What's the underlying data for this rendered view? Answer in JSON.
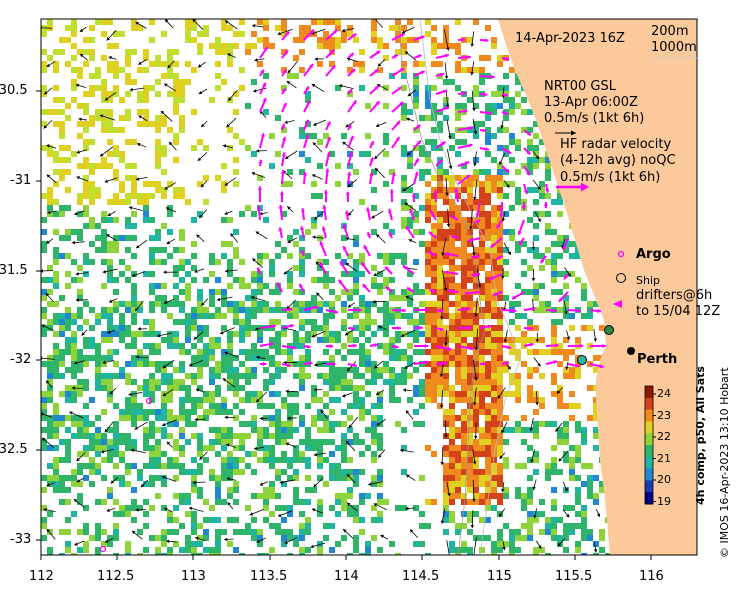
{
  "header": {
    "date": "14-Apr-2023 16Z",
    "depth_200": "200m",
    "depth_1000": "1000m"
  },
  "legend": {
    "model_name": "NRT00 GSL",
    "model_time": "13-Apr 06:00Z",
    "model_scale": "0.5m/s (1kt 6h)",
    "hf_line1": "HF radar velocity",
    "hf_line2": "(4-12h avg) noQC",
    "hf_scale": "0.5m/s (1kt 6h)",
    "argo": "Argo",
    "ship": "Ship",
    "drifters_line1": "drifters@6h",
    "drifters_line2": "to 15/04 12Z",
    "city": "Perth"
  },
  "colorbar": {
    "title": "4h comp, p50, All Sats",
    "ticks": [
      "24",
      "23",
      "22",
      "21",
      "20",
      "19"
    ],
    "colors": [
      "#8b1a00",
      "#d4421a",
      "#f08a1e",
      "#e0d020",
      "#8fd33a",
      "#2fb56a",
      "#1fb5a0",
      "#1f88d0",
      "#1a3ab0",
      "#000080"
    ]
  },
  "axes": {
    "x_ticks": [
      "112",
      "112.5",
      "113",
      "113.5",
      "114",
      "114.5",
      "115",
      "115.5",
      "116"
    ],
    "y_ticks": [
      "-30.5",
      "-31",
      "-31.5",
      "-32",
      "-32.5",
      "-33"
    ]
  },
  "credit": "© IMOS 16-Apr-2023 13:10 Hobart",
  "colors": {
    "land": "#fbc99a",
    "hf_arrow": "#ff00ff",
    "model_arrow": "#000000"
  }
}
